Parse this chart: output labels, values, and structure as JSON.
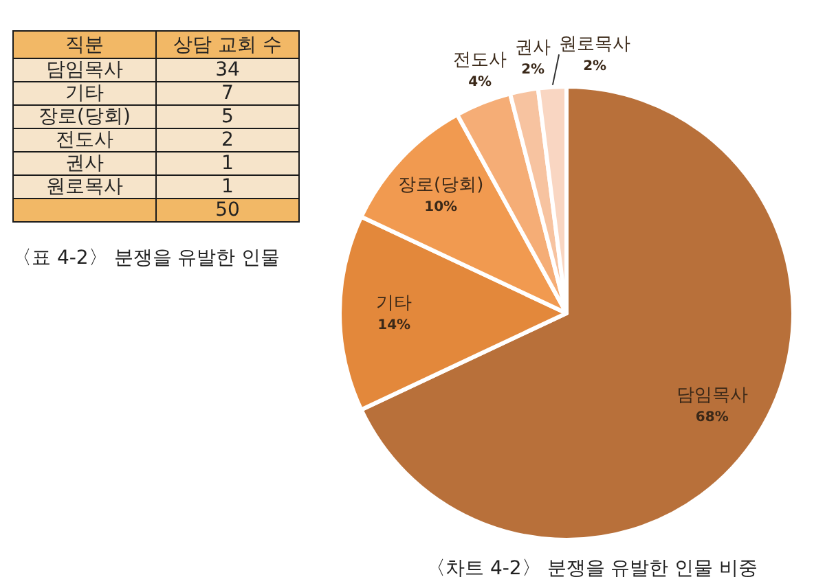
{
  "chart_data": [
    {
      "type": "other",
      "title": "〈표 4-2〉 분쟁을 유발한 인물",
      "xlabel": "직분",
      "ylabel": "상담 교회 수",
      "categories": [
        "담임목사",
        "기타",
        "장로(당회)",
        "전도사",
        "권사",
        "원로목사"
      ],
      "values": [
        34,
        7,
        5,
        2,
        1,
        1
      ],
      "data_labels": true,
      "totals": [
        "50"
      ]
    },
    {
      "type": "pie",
      "title": "〈차트 4-2〉 분쟁을 유발한 인물 비중",
      "categories": [
        "담임목사",
        "기타",
        "장로(당회)",
        "전도사",
        "권사",
        "원로목사"
      ],
      "values": [
        68,
        14,
        10,
        4,
        2,
        2
      ],
      "value_labels": [
        "68%",
        "14%",
        "10%",
        "4%",
        "2%",
        "2%"
      ],
      "colors": [
        "#b8703a",
        "#e3883b",
        "#f19a50",
        "#f5ad76",
        "#f7c3a0",
        "#f9d6c2"
      ]
    }
  ]
}
